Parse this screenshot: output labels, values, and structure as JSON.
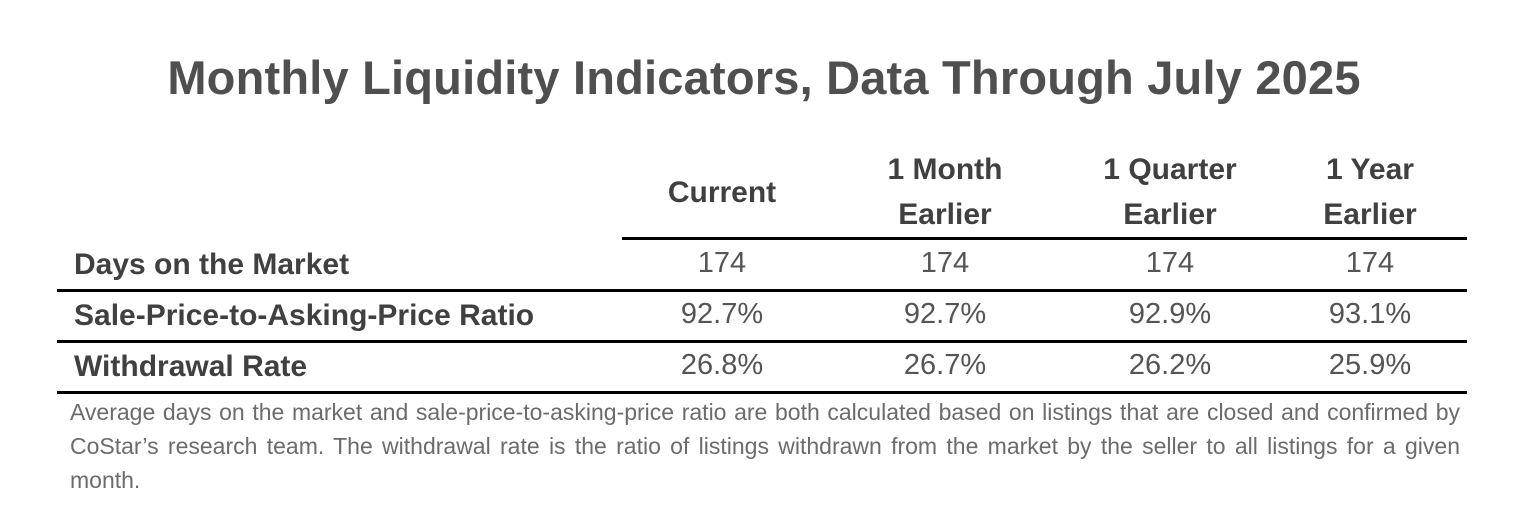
{
  "title": "Monthly Liquidity Indicators, Data Through July 2025",
  "columns": [
    {
      "line1": "Current",
      "line2": ""
    },
    {
      "line1": "1 Month",
      "line2": "Earlier"
    },
    {
      "line1": "1 Quarter",
      "line2": "Earlier"
    },
    {
      "line1": "1 Year",
      "line2": "Earlier"
    }
  ],
  "rows": [
    {
      "label": "Days on the Market",
      "values": [
        "174",
        "174",
        "174",
        "174"
      ]
    },
    {
      "label": "Sale-Price-to-Asking-Price Ratio",
      "values": [
        "92.7%",
        "92.7%",
        "92.9%",
        "93.1%"
      ]
    },
    {
      "label": "Withdrawal Rate",
      "values": [
        "26.8%",
        "26.7%",
        "26.2%",
        "25.9%"
      ]
    }
  ],
  "note": "Average days on the market and sale-price-to-asking-price ratio are both calculated based on listings that are closed and confirmed by CoStar’s research team. The withdrawal rate is the ratio of listings withdrawn from the market by the seller to all listings for a given month."
}
